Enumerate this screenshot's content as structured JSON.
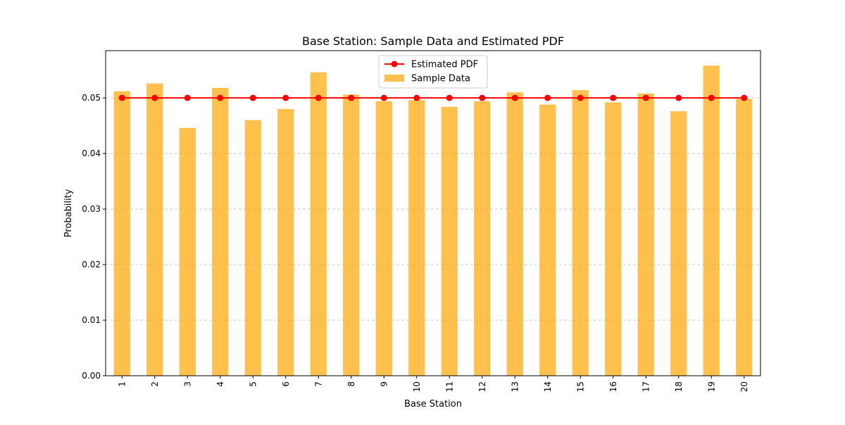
{
  "chart_data": {
    "type": "bar",
    "title": "Base Station: Sample Data and Estimated PDF",
    "xlabel": "Base Station",
    "ylabel": "Probability",
    "categories": [
      "1",
      "2",
      "3",
      "4",
      "5",
      "6",
      "7",
      "8",
      "9",
      "10",
      "11",
      "12",
      "13",
      "14",
      "15",
      "16",
      "17",
      "18",
      "19",
      "20"
    ],
    "ylim": [
      0,
      0.0585
    ],
    "yticks": [
      "0.00",
      "0.01",
      "0.02",
      "0.03",
      "0.04",
      "0.05"
    ],
    "grid": "horizontal dashed",
    "legend_position": "top-center",
    "series": [
      {
        "name": "Estimated PDF",
        "type": "line",
        "color": "#ff0000",
        "marker": "circle",
        "values": [
          0.05,
          0.05,
          0.05,
          0.05,
          0.05,
          0.05,
          0.05,
          0.05,
          0.05,
          0.05,
          0.05,
          0.05,
          0.05,
          0.05,
          0.05,
          0.05,
          0.05,
          0.05,
          0.05,
          0.05
        ]
      },
      {
        "name": "Sample Data",
        "type": "bar",
        "color": "#ffa500",
        "opacity": 0.7,
        "values": [
          0.0512,
          0.0526,
          0.0446,
          0.0518,
          0.046,
          0.048,
          0.0546,
          0.0506,
          0.0494,
          0.0496,
          0.0484,
          0.0494,
          0.051,
          0.0488,
          0.0514,
          0.0492,
          0.0508,
          0.0476,
          0.0558,
          0.0498
        ]
      }
    ]
  }
}
